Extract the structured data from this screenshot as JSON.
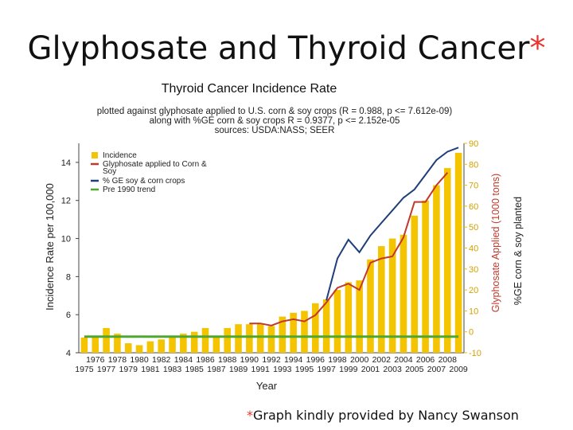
{
  "slide": {
    "title": "Glyphosate and Thyroid Cancer",
    "title_asterisk": "*",
    "credit_asterisk": "*",
    "credit": "Graph kindly provided by Nancy Swanson"
  },
  "chart_data": {
    "type": "bar",
    "title": "Thyroid Cancer Incidence Rate",
    "subtitle_lines": [
      "plotted against glyphosate applied to U.S. corn & soy crops (R = 0.988, p <= 7.612e-09)",
      "along with %GE corn & soy crops R = 0.9377, p <= 2.152e-05",
      "sources: USDA:NASS; SEER"
    ],
    "xlabel": "Year",
    "ylabel_left": "Incidence Rate per 100,000",
    "ylabel_right_1": "Glyphosate Applied (1000 tons)",
    "ylabel_right_2": "%GE corn & soy planted",
    "categories": [
      "1975",
      "1976",
      "1977",
      "1978",
      "1979",
      "1980",
      "1981",
      "1982",
      "1983",
      "1984",
      "1985",
      "1986",
      "1987",
      "1988",
      "1989",
      "1990",
      "1991",
      "1992",
      "1993",
      "1994",
      "1995",
      "1996",
      "1997",
      "1998",
      "1999",
      "2000",
      "2001",
      "2002",
      "2003",
      "2004",
      "2005",
      "2006",
      "2007",
      "2008",
      "2009"
    ],
    "x_ticks_row1": [
      "1976",
      "1978",
      "1980",
      "1982",
      "1984",
      "1986",
      "1988",
      "1990",
      "1992",
      "1994",
      "1996",
      "1998",
      "2000",
      "2002",
      "2004",
      "2006",
      "2008"
    ],
    "x_ticks_row2": [
      "1975",
      "1977",
      "1979",
      "1981",
      "1983",
      "1985",
      "1987",
      "1989",
      "1991",
      "1993",
      "1995",
      "1997",
      "1999",
      "2001",
      "2003",
      "2005",
      "2007",
      "2009"
    ],
    "ylim_left": [
      4,
      15
    ],
    "yticks_left": [
      "4",
      "6",
      "8",
      "10",
      "12",
      "14"
    ],
    "ylim_right": [
      -10,
      90
    ],
    "yticks_right": [
      "-10",
      "0",
      "10",
      "20",
      "30",
      "40",
      "50",
      "60",
      "70",
      "80",
      "90"
    ],
    "series": [
      {
        "name": "Incidence",
        "axis": "left",
        "color": "#f5c400",
        "values": [
          4.8,
          4.9,
          5.3,
          5.0,
          4.5,
          4.4,
          4.6,
          4.7,
          4.9,
          5.0,
          5.1,
          5.3,
          4.9,
          5.3,
          5.5,
          5.5,
          5.5,
          5.4,
          5.9,
          6.1,
          6.2,
          6.6,
          6.8,
          7.3,
          7.7,
          7.8,
          8.9,
          9.6,
          10.0,
          10.2,
          11.2,
          12.0,
          12.8,
          13.7,
          14.5
        ]
      },
      {
        "name": "Glyphosate applied to Corn & Soy",
        "axis": "right",
        "color": "#c0392b",
        "values": [
          null,
          null,
          null,
          null,
          null,
          null,
          null,
          null,
          null,
          null,
          null,
          null,
          null,
          null,
          null,
          4,
          4,
          3,
          5,
          6,
          5,
          8,
          14,
          21,
          23,
          20,
          33,
          35,
          36,
          45,
          62,
          62,
          70,
          76,
          null
        ]
      },
      {
        "name": "% GE soy & corn crops",
        "axis": "right",
        "color": "#1f3f7a",
        "values": [
          null,
          null,
          null,
          null,
          null,
          null,
          null,
          null,
          null,
          null,
          null,
          null,
          null,
          null,
          null,
          null,
          null,
          null,
          null,
          null,
          null,
          null,
          15,
          35,
          44,
          38,
          46,
          52,
          58,
          64,
          68,
          75,
          82,
          86,
          88
        ]
      },
      {
        "name": "Pre 1990 trend",
        "axis": "left",
        "color": "#4ea72e",
        "values": [
          4.85,
          4.85,
          4.85,
          4.85,
          4.85,
          4.85,
          4.85,
          4.85,
          4.85,
          4.85,
          4.85,
          4.85,
          4.85,
          4.85,
          4.85,
          4.85,
          4.85,
          4.85,
          4.85,
          4.85,
          4.85,
          4.85,
          4.85,
          4.85,
          4.85,
          4.85,
          4.85,
          4.85,
          4.85,
          4.85,
          4.85,
          4.85,
          4.85,
          4.85,
          4.85
        ]
      }
    ],
    "legend_position": "top-left",
    "grid": false
  }
}
